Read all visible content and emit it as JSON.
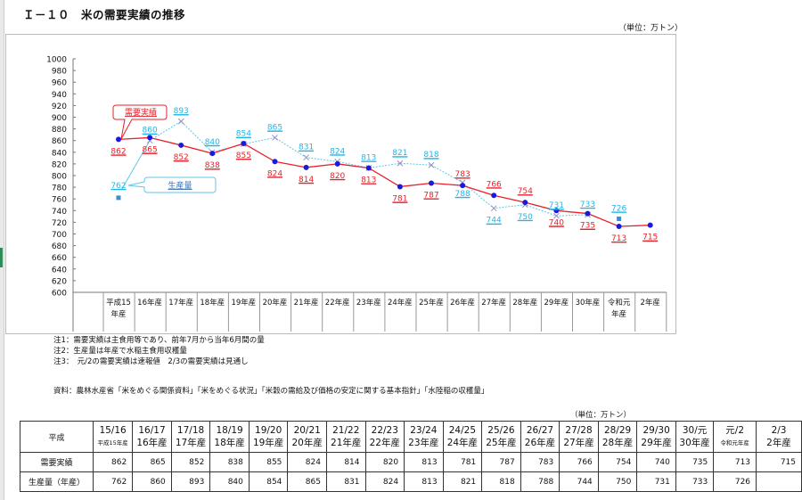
{
  "page": {
    "title": "Ｉ－１０　米の需要実績の推移",
    "unit_label": "（単位：万トン）"
  },
  "chart_data": {
    "type": "line",
    "title": "米の需要実績の推移",
    "ylabel": "万トン",
    "xlabel": "",
    "ylim": [
      600,
      1000
    ],
    "yticks": [
      600,
      620,
      640,
      660,
      680,
      700,
      720,
      740,
      760,
      780,
      800,
      820,
      840,
      860,
      880,
      900,
      920,
      940,
      960,
      980,
      1000
    ],
    "grid": false,
    "categories": [
      "平成15年産",
      "16年産",
      "17年産",
      "18年産",
      "19年産",
      "20年産",
      "21年産",
      "22年産",
      "23年産",
      "24年産",
      "25年産",
      "26年産",
      "27年産",
      "28年産",
      "29年産",
      "30年産",
      "令和元年産",
      "2年産"
    ],
    "category_lines": [
      [
        "平成15",
        "年産"
      ],
      [
        "16年産"
      ],
      [
        "17年産"
      ],
      [
        "18年産"
      ],
      [
        "19年産"
      ],
      [
        "20年産"
      ],
      [
        "21年産"
      ],
      [
        "22年産"
      ],
      [
        "23年産"
      ],
      [
        "24年産"
      ],
      [
        "25年産"
      ],
      [
        "26年産"
      ],
      [
        "27年産"
      ],
      [
        "28年産"
      ],
      [
        "29年産"
      ],
      [
        "30年産"
      ],
      [
        "令和元",
        "年産"
      ],
      [
        "2年産"
      ]
    ],
    "series": [
      {
        "name": "需要実績",
        "color": "#e8202a",
        "marker_color": "#1a1adf",
        "values": [
          862,
          865,
          852,
          838,
          855,
          824,
          814,
          820,
          813,
          781,
          787,
          783,
          766,
          754,
          740,
          735,
          713,
          715
        ]
      },
      {
        "name": "生産量",
        "color": "#5fc6ea",
        "marker_color": "#8e8ecb",
        "values": [
          762,
          860,
          893,
          840,
          854,
          865,
          831,
          824,
          813,
          821,
          818,
          788,
          744,
          750,
          731,
          733,
          726,
          null
        ],
        "connected_from": 1,
        "connected_to": 15
      }
    ],
    "legend": [
      {
        "label": "需要実績",
        "placement": "callout near first point"
      },
      {
        "label": "生産量",
        "placement": "callout near first point"
      }
    ]
  },
  "notes": [
    "注1：需要実績は主食用等であり、前年7月から当年6月間の量",
    "注2：生産量は年産で水稲主食用収穫量",
    "注3：　元/2の需要実績は速報値　2/3の需要実績は見通し"
  ],
  "source": "資料：農林水産省「米をめぐる関係資料」「米をめぐる状況」「米穀の需給及び価格の安定に関する基本指針」「水陸稲の収穫量」",
  "table": {
    "unit_label": "（単位：万トン）",
    "corner_label": "平成",
    "columns": [
      {
        "year": "15/16",
        "sub": "平成15年産",
        "small": true
      },
      {
        "year": "16/17",
        "sub": "16年産"
      },
      {
        "year": "17/18",
        "sub": "17年産"
      },
      {
        "year": "18/19",
        "sub": "18年産"
      },
      {
        "year": "19/20",
        "sub": "19年産"
      },
      {
        "year": "20/21",
        "sub": "20年産"
      },
      {
        "year": "21/22",
        "sub": "21年産"
      },
      {
        "year": "22/23",
        "sub": "22年産"
      },
      {
        "year": "23/24",
        "sub": "23年産"
      },
      {
        "year": "24/25",
        "sub": "24年産"
      },
      {
        "year": "25/26",
        "sub": "25年産"
      },
      {
        "year": "26/27",
        "sub": "26年産"
      },
      {
        "year": "27/28",
        "sub": "27年産"
      },
      {
        "year": "28/29",
        "sub": "28年産"
      },
      {
        "year": "29/30",
        "sub": "29年産"
      },
      {
        "year": "30/元",
        "sub": "30年産"
      },
      {
        "year": "元/2",
        "sub": "令和元年産",
        "small": true
      },
      {
        "year": "2/3",
        "sub": "2年産"
      }
    ],
    "rows": [
      {
        "label": "需要実績",
        "values": [
          "862",
          "865",
          "852",
          "838",
          "855",
          "824",
          "814",
          "820",
          "813",
          "781",
          "787",
          "783",
          "766",
          "754",
          "740",
          "735",
          "713",
          "715"
        ]
      },
      {
        "label": "生産量（年産）",
        "values": [
          "762",
          "860",
          "893",
          "840",
          "854",
          "865",
          "831",
          "824",
          "813",
          "821",
          "818",
          "788",
          "744",
          "750",
          "731",
          "733",
          "726",
          ""
        ]
      }
    ]
  }
}
